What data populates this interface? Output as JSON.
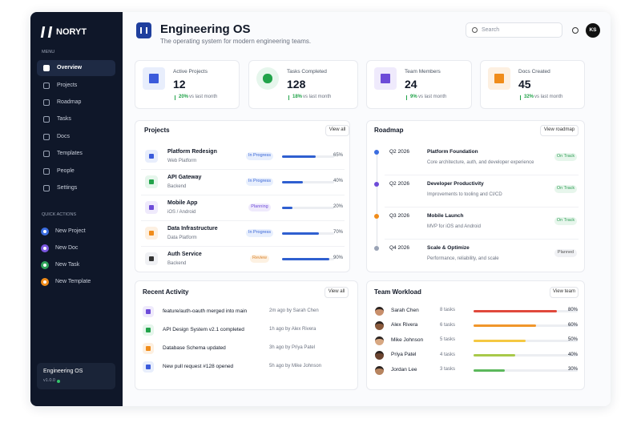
{
  "sidebar": {
    "brand": "NORYT",
    "menu_label": "MENU",
    "menu": [
      "Overview",
      "Projects",
      "Roadmap",
      "Tasks",
      "Docs",
      "Templates",
      "People",
      "Settings"
    ],
    "quick_label": "QUICK ACTIONS",
    "quick_actions": [
      "New Project",
      "New Doc",
      "New Task",
      "New Template"
    ],
    "footer": {
      "title": "Engineering OS",
      "version": "v1.0.0"
    }
  },
  "header": {
    "title": "Engineering OS",
    "subtitle": "The operating system for modern engineering teams.",
    "search_placeholder": "Search",
    "avatar": "KS"
  },
  "stats": [
    {
      "label": "Active Projects",
      "value": "12",
      "change": "20%",
      "note": "vs last month"
    },
    {
      "label": "Tasks Completed",
      "value": "128",
      "change": "18%",
      "note": "vs last month"
    },
    {
      "label": "Team Members",
      "value": "24",
      "change": "9%",
      "note": "vs last month"
    },
    {
      "label": "Docs Created",
      "value": "45",
      "change": "32%",
      "note": "vs last month"
    }
  ],
  "projects": {
    "title": "Projects",
    "action": "View all",
    "rows": [
      {
        "name": "Platform Redesign",
        "team": "Web Platform",
        "status": "In Progress",
        "progress": {
          "value": 65,
          "label": "65%"
        }
      },
      {
        "name": "API Gateway",
        "team": "Backend",
        "status": "In Progress",
        "progress": {
          "value": 40,
          "label": "40%"
        }
      },
      {
        "name": "Mobile App",
        "team": "iOS / Android",
        "status": "Planning",
        "progress": {
          "value": 20,
          "label": "20%"
        }
      },
      {
        "name": "Data Infrastructure",
        "team": "Data Platform",
        "status": "In Progress",
        "progress": {
          "value": 70,
          "label": "70%"
        }
      },
      {
        "name": "Auth Service",
        "team": "Backend",
        "status": "Review",
        "progress": {
          "value": 90,
          "label": "90%"
        }
      }
    ]
  },
  "roadmap": {
    "title": "Roadmap",
    "action": "View roadmap",
    "items": [
      {
        "date": "Q2 2026",
        "title": "Platform Foundation",
        "description": "Core architecture, auth, and developer experience",
        "status": "On Track"
      },
      {
        "date": "Q2 2026",
        "title": "Developer Productivity",
        "description": "Improvements to tooling and CI/CD",
        "status": "On Track"
      },
      {
        "date": "Q3 2026",
        "title": "Mobile Launch",
        "description": "MVP for iOS and Android",
        "status": "On Track"
      },
      {
        "date": "Q4 2026",
        "title": "Scale & Optimize",
        "description": "Performance, reliability, and scale",
        "status": "Planned"
      }
    ]
  },
  "activity": {
    "title": "Recent Activity",
    "action": "View all",
    "items": [
      {
        "text": "feature/auth-oauth merged into main",
        "time": "2m ago by Sarah Chen"
      },
      {
        "text": "API Design System v2.1 completed",
        "time": "1h ago by Alex Rivera"
      },
      {
        "text": "Database Schema updated",
        "time": "3h ago by Priya Patel"
      },
      {
        "text": "New pull request #128 opened",
        "time": "5h ago by Mike Johnson"
      }
    ]
  },
  "workload": {
    "title": "Team Workload",
    "action": "View team",
    "members": [
      {
        "name": "Sarah Chen",
        "tasks": "8 tasks",
        "load": {
          "value": 80,
          "label": "80%"
        }
      },
      {
        "name": "Alex Rivera",
        "tasks": "6 tasks",
        "load": {
          "value": 60,
          "label": "60%"
        }
      },
      {
        "name": "Mike Johnson",
        "tasks": "5 tasks",
        "load": {
          "value": 50,
          "label": "50%"
        }
      },
      {
        "name": "Priya Patel",
        "tasks": "4 tasks",
        "load": {
          "value": 40,
          "label": "40%"
        }
      },
      {
        "name": "Jordan Lee",
        "tasks": "3 tasks",
        "load": {
          "value": 30,
          "label": "30%"
        }
      }
    ]
  }
}
